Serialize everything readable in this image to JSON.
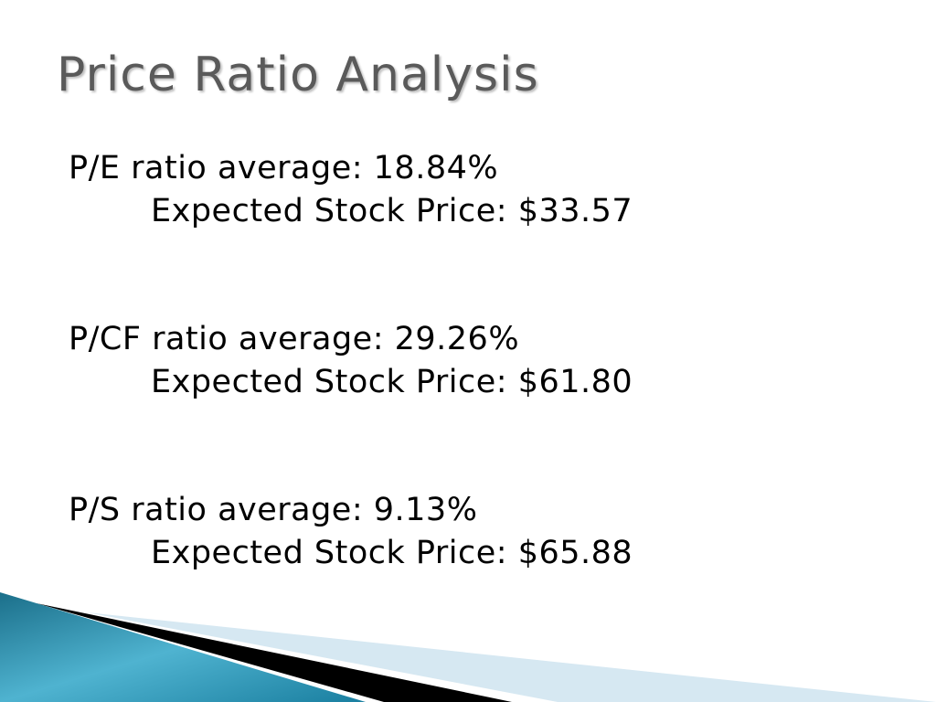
{
  "title": "Price Ratio Analysis",
  "items": [
    {
      "label": "P/E ratio average: 18.84%",
      "detail": "Expected Stock Price: $33.57"
    },
    {
      "label": "P/CF ratio average: 29.26%",
      "detail": "Expected Stock Price: $61.80"
    },
    {
      "label": "P/S ratio average: 9.13%",
      "detail": "Expected Stock Price: $65.88"
    }
  ]
}
